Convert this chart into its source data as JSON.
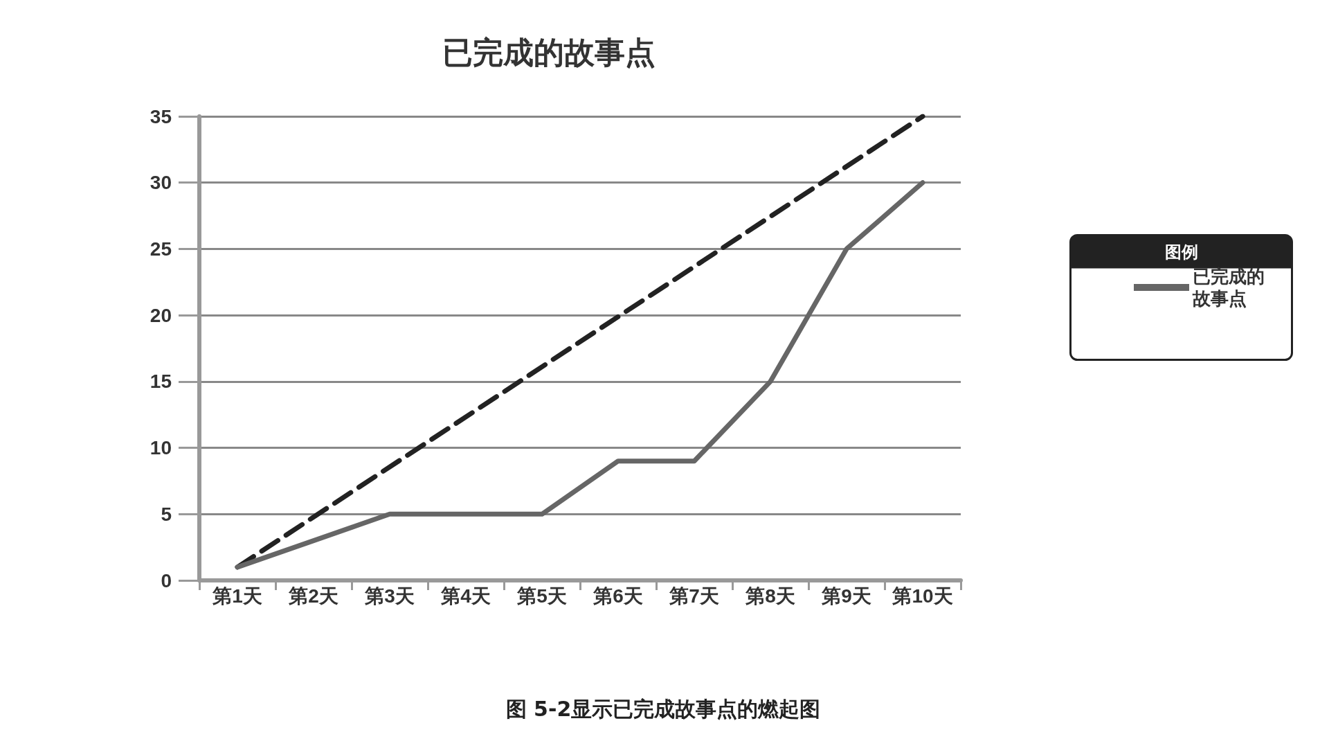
{
  "chart_data": {
    "type": "line",
    "title": "已完成的故事点",
    "categories": [
      "第1天",
      "第2天",
      "第3天",
      "第4天",
      "第5天",
      "第6天",
      "第7天",
      "第8天",
      "第9天",
      "第10天"
    ],
    "series": [
      {
        "name": "已完成的故事点",
        "color": "#666666",
        "values": [
          1,
          3,
          5,
          5,
          5,
          9,
          9,
          15,
          25,
          30
        ],
        "line_style": "solid"
      },
      {
        "color": "#222222",
        "x": [
          "第1天",
          "第10天"
        ],
        "values": [
          1,
          35
        ],
        "line_style": "dashed"
      }
    ],
    "ylim": [
      0,
      35
    ],
    "yticks": [
      0,
      5,
      10,
      15,
      20,
      25,
      30,
      35
    ],
    "grid": "y",
    "legend": "right",
    "legend_title": "图例",
    "marker": "none",
    "annotations": [
      "图 5-2显示已完成故事点的燃起图"
    ]
  }
}
